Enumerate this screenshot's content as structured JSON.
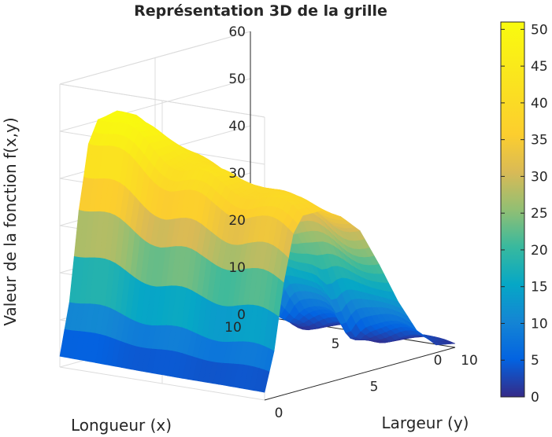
{
  "chart_data": {
    "type": "surface",
    "title": "Représentation 3D de la grille",
    "xlabel": "Longueur (x)",
    "ylabel": "Largeur (y)",
    "zlabel": "Valeur de la fonction f(x,y)",
    "xlim": [
      0,
      10
    ],
    "ylim": [
      0,
      10
    ],
    "zlim": [
      0,
      60
    ],
    "xticks": [
      "0",
      "5",
      "10"
    ],
    "yticks": [
      "0",
      "5",
      "10"
    ],
    "zticks": [
      "0",
      "10",
      "20",
      "30",
      "40",
      "50",
      "60"
    ],
    "colorbar": {
      "colormap": "parula",
      "range": [
        0,
        51
      ],
      "ticks": [
        "0",
        "5",
        "10",
        "15",
        "20",
        "25",
        "30",
        "35",
        "40",
        "45",
        "50"
      ]
    },
    "grid": true,
    "z_profile_along_y": [
      {
        "y": 0,
        "z": 2
      },
      {
        "y": 0.5,
        "z": 12
      },
      {
        "y": 1.0,
        "z": 29
      },
      {
        "y": 1.5,
        "z": 41
      },
      {
        "y": 2.0,
        "z": 45
      },
      {
        "y": 3.0,
        "z": 45
      },
      {
        "y": 4.0,
        "z": 42
      },
      {
        "y": 5.0,
        "z": 37
      },
      {
        "y": 6.0,
        "z": 27
      },
      {
        "y": 7.0,
        "z": 16
      },
      {
        "y": 8.0,
        "z": 7
      },
      {
        "y": 9.0,
        "z": 2
      },
      {
        "y": 10.0,
        "z": 1
      }
    ],
    "x_modulation": [
      {
        "x": 0,
        "factor": 0.82
      },
      {
        "x": 2,
        "factor": 0.88
      },
      {
        "x": 4,
        "factor": 0.9
      },
      {
        "x": 6,
        "factor": 0.96
      },
      {
        "x": 8,
        "factor": 1.06
      },
      {
        "x": 10,
        "factor": 1.15
      }
    ],
    "dips": [
      {
        "x": 3.2,
        "y": 8.3,
        "depth": 28
      },
      {
        "x": 6.3,
        "y": 7.4,
        "depth": 22
      }
    ],
    "z_max": 51
  }
}
